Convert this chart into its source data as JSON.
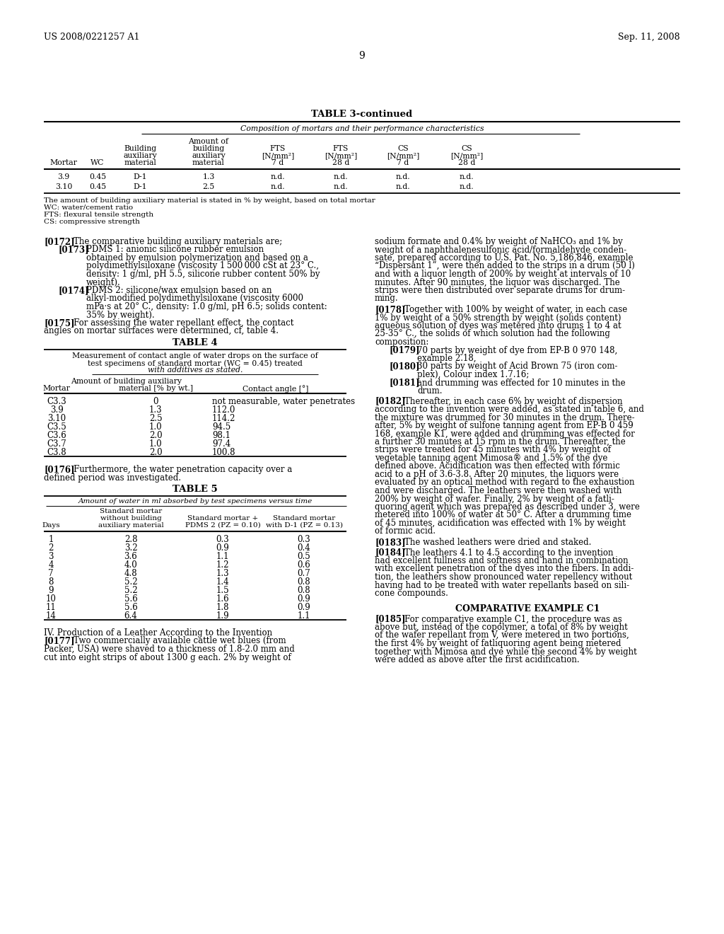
{
  "header_left": "US 2008/0221257 A1",
  "header_right": "Sep. 11, 2008",
  "page_number": "9",
  "background_color": "#ffffff",
  "table3_title": "TABLE 3-continued",
  "table3_subtitle": "Composition of mortars and their performance characteristics",
  "table3_footnotes": [
    "The amount of building auxiliary material is stated in % by weight, based on total mortar",
    "WC: water/cement ratio",
    "FTS: flexural tensile strength",
    "CS: compressive strength"
  ],
  "table3_rows": [
    [
      "3.9",
      "0.45",
      "D-1",
      "1.3",
      "n.d.",
      "n.d.",
      "n.d.",
      "n.d."
    ],
    [
      "3.10",
      "0.45",
      "D-1",
      "2.5",
      "n.d.",
      "n.d.",
      "n.d.",
      "n.d."
    ]
  ],
  "table4_title": "TABLE 4",
  "table4_sub1": "Measurement of contact angle of water drops on the surface of",
  "table4_sub2": "test specimens of standard mortar (WC = 0.45) treated",
  "table4_sub3": "with additives as stated.",
  "table4_rows": [
    [
      "C3.3",
      "0",
      "not measurable, water penetrates"
    ],
    [
      "3.9",
      "1.3",
      "112.0"
    ],
    [
      "3.10",
      "2.5",
      "114.2"
    ],
    [
      "C3.5",
      "1.0",
      "94.5"
    ],
    [
      "C3.6",
      "2.0",
      "98.1"
    ],
    [
      "C3.7",
      "1.0",
      "97.4"
    ],
    [
      "C3.8",
      "2.0",
      "100.8"
    ]
  ],
  "table5_title": "TABLE 5",
  "table5_subtitle": "Amount of water in ml absorbed by test specimens versus time",
  "table5_rows": [
    [
      "1",
      "2.8",
      "0.3",
      "0.3"
    ],
    [
      "2",
      "3.2",
      "0.9",
      "0.4"
    ],
    [
      "3",
      "3.6",
      "1.1",
      "0.5"
    ],
    [
      "4",
      "4.0",
      "1.2",
      "0.6"
    ],
    [
      "7",
      "4.8",
      "1.3",
      "0.7"
    ],
    [
      "8",
      "5.2",
      "1.4",
      "0.8"
    ],
    [
      "9",
      "5.2",
      "1.5",
      "0.8"
    ],
    [
      "10",
      "5.6",
      "1.6",
      "0.9"
    ],
    [
      "11",
      "5.6",
      "1.8",
      "0.9"
    ],
    [
      "14",
      "6.4",
      "1.9",
      "1.1"
    ]
  ],
  "left_lines_0172": [
    "[0172]  The comparative building auxiliary materials are;"
  ],
  "left_lines_0173_head": [
    "[0173]  PDMS 1: anionic silicone rubber emulsion"
  ],
  "left_lines_0173_body": [
    "obtained by emulsion polymerization and based on a",
    "polydimethylsiloxane (viscosity 1 500 000 cSt at 23° C.,",
    "density: 1 g/ml, pH 5.5, silicone rubber content 50% by",
    "weight)."
  ],
  "left_lines_0174_head": [
    "[0174]  PDMS 2: silicone/wax emulsion based on an"
  ],
  "left_lines_0174_body": [
    "alkyl-modified polydimethylsiloxane (viscosity 6000",
    "mPa·s at 20° C., density: 1.0 g/ml, pH 6.5; solids content:",
    "35% by weight)."
  ],
  "left_lines_0175": [
    "[0175]  For assessing the water repellant effect, the contact",
    "angles on mortar surfaces were determined, cf, table 4."
  ],
  "left_lines_0176": [
    "[0176]  Furthermore, the water penetration capacity over a",
    "defined period was investigated."
  ],
  "left_lines_iv": [
    "IV. Production of a Leather According to the Invention"
  ],
  "left_lines_0177": [
    "[0177]  Two commercially available cattle wet blues (from",
    "Packer, USA) were shaved to a thickness of 1.8-2.0 mm and",
    "cut into eight strips of about 1300 g each. 2% by weight of"
  ],
  "rc_lines_top": [
    "sodium formate and 0.4% by weight of NaHCO₃ and 1% by",
    "weight of a naphthalenesulfonic acid/formaldehyde conden-",
    "sate, prepared according to U.S. Pat. No. 5,186,846, example",
    "“Dispersant 1”, were then added to the strips in a drum (50 l)",
    "and with a liquor length of 200% by weight at intervals of 10",
    "minutes. After 90 minutes, the liquor was discharged. The",
    "strips were then distributed over separate drums for drum-",
    "ming."
  ],
  "rc_lines_0178_head": [
    "[0178]  Together with 100% by weight of water, in each case"
  ],
  "rc_lines_0178_body": [
    "1% by weight of a 50% strength by weight (solids content)",
    "aqueous solution of dyes was metered into drums 1 to 4 at",
    "25-35° C., the solids of which solution had the following",
    "composition:"
  ],
  "rc_lines_0179_head": [
    "[0179]  70 parts by weight of dye from EP-B 0 970 148,"
  ],
  "rc_lines_0179_body": [
    "example 2.18,"
  ],
  "rc_lines_0180_head": [
    "[0180]  30 parts by weight of Acid Brown 75 (iron com-"
  ],
  "rc_lines_0180_body": [
    "plex), Colour index 1.7.16;"
  ],
  "rc_lines_0181_head": [
    "[0181]  and drumming was effected for 10 minutes in the"
  ],
  "rc_lines_0181_body": [
    "drum."
  ],
  "rc_lines_0182_head": [
    "[0182]  Thereafter, in each case 6% by weight of dispersion"
  ],
  "rc_lines_0182_body": [
    "according to the invention were added, as stated in table 6, and",
    "the mixture was drummed for 30 minutes in the drum. There-",
    "after, 5% by weight of sulfone tanning agent from EP-B 0 459",
    "168, example K1, were added and drumming was effected for",
    "a further 30 minutes at 15 rpm in the drum. Thereafter, the",
    "strips were treated for 45 minutes with 4% by weight of",
    "vegetable tanning agent Mimosa® and 1.5% of the dye",
    "defined above. Acidification was then effected with formic",
    "acid to a pH of 3.6-3.8. After 20 minutes, the liquors were",
    "evaluated by an optical method with regard to the exhaustion",
    "and were discharged. The leathers were then washed with",
    "200% by weight of wafer. Finally, 2% by weight of a fatli-",
    "quoring agent which was prepared as described under 3, were",
    "metered into 100% of water at 50° C. After a drumming time",
    "of 45 minutes, acidification was effected with 1% by weight",
    "of formic acid."
  ],
  "rc_lines_0183": [
    "[0183]  The washed leathers were dried and staked."
  ],
  "rc_lines_0184_head": [
    "[0184]  The leathers 4.1 to 4.5 according to the invention"
  ],
  "rc_lines_0184_body": [
    "had excellent fullness and softness and hand in combination",
    "with excellent penetration of the dyes into the fibers. In addi-",
    "tion, the leathers show pronounced water repellency without",
    "having had to be treated with water repellants based on sili-",
    "cone compounds."
  ],
  "comp_example_title": "COMPARATIVE EXAMPLE C1",
  "rc_lines_0185_head": [
    "[0185]  For comparative example C1, the procedure was as"
  ],
  "rc_lines_0185_body": [
    "above but, instead of the copolymer, a total of 8% by weight",
    "of the wafer repellant from V, were metered in two portions,",
    "the first 4% by weight of fatliquoring agent being metered",
    "together with Mimosa and dye while the second 4% by weight",
    "were added as above after the first acidification."
  ]
}
